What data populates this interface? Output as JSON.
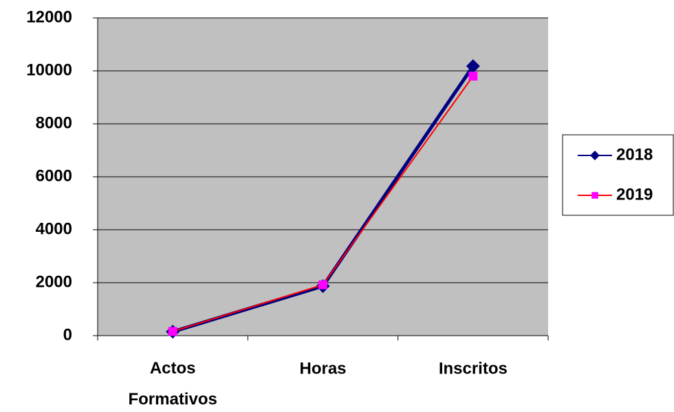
{
  "chart_data": {
    "type": "line",
    "categories": [
      "Actos Formativos",
      "Horas",
      "Inscritos"
    ],
    "series": [
      {
        "name": "2018",
        "color": "#000080",
        "marker_color": "#000080",
        "marker": "diamond",
        "values": [
          150,
          1870,
          10180
        ]
      },
      {
        "name": "2019",
        "color": "#ff0000",
        "marker_color": "#ff00ff",
        "marker": "square",
        "values": [
          160,
          1920,
          9800
        ]
      }
    ],
    "ylim": [
      0,
      12000
    ],
    "yticks": [
      0,
      2000,
      4000,
      6000,
      8000,
      10000,
      12000
    ],
    "grid": true,
    "plot_background": "#c0c0c0",
    "legend": "right"
  }
}
